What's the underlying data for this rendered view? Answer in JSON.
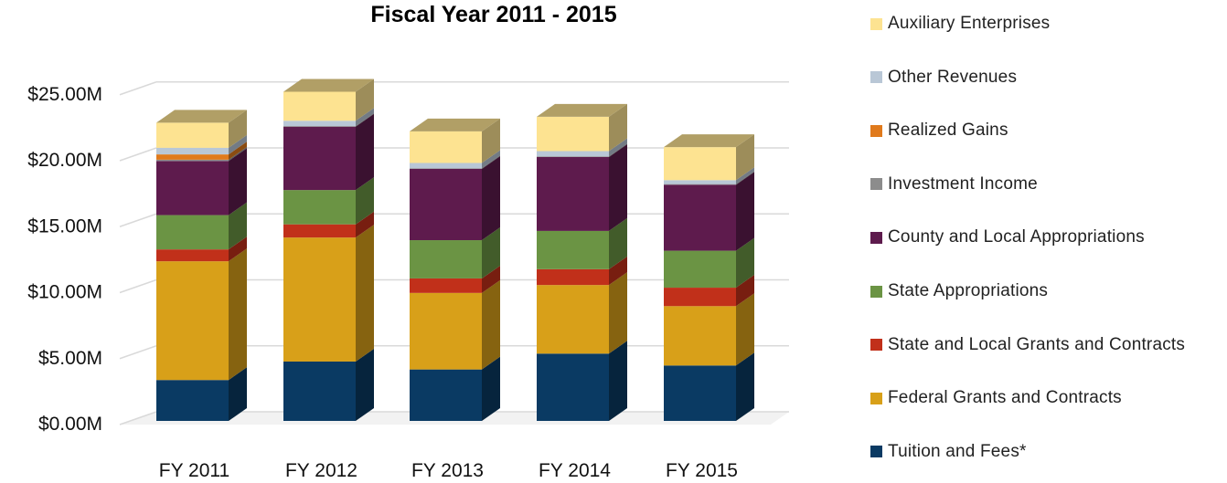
{
  "chart_data": {
    "type": "bar",
    "stacked": true,
    "three_d": true,
    "title": "Fiscal Year 2011 - 2015",
    "xlabel": "",
    "ylabel": "",
    "categories": [
      "FY 2011",
      "FY 2012",
      "FY 2013",
      "FY 2014",
      "FY 2015"
    ],
    "y_ticks": [
      "$0.00M",
      "$5.00M",
      "$10.00M",
      "$15.00M",
      "$20.00M",
      "$25.00M"
    ],
    "y_tick_values": [
      0,
      5,
      10,
      15,
      20,
      25
    ],
    "ylim": [
      0,
      25
    ],
    "grid": true,
    "legend_position": "right",
    "series": [
      {
        "name": "Tuition and Fees*",
        "color": "#0a3a63",
        "values": [
          3.1,
          4.5,
          3.9,
          5.1,
          4.2
        ]
      },
      {
        "name": "Federal Grants and Contracts",
        "color": "#d8a019",
        "values": [
          9.0,
          9.4,
          5.8,
          5.2,
          4.5
        ]
      },
      {
        "name": "State and Local Grants and Contracts",
        "color": "#c1301a",
        "values": [
          0.9,
          1.0,
          1.1,
          1.2,
          1.4
        ]
      },
      {
        "name": "State Appropriations",
        "color": "#6b9444",
        "values": [
          2.6,
          2.6,
          2.9,
          2.9,
          2.8
        ]
      },
      {
        "name": "County and Local Appropriations",
        "color": "#5e1b4d",
        "values": [
          4.1,
          4.8,
          5.4,
          5.6,
          5.0
        ]
      },
      {
        "name": "Investment Income",
        "color": "#8c8c8c",
        "values": [
          0.1,
          0.05,
          0.05,
          0.05,
          0.05
        ]
      },
      {
        "name": "Realized Gains",
        "color": "#e07a1c",
        "values": [
          0.4,
          0.0,
          0.0,
          0.0,
          0.0
        ]
      },
      {
        "name": "Other Revenues",
        "color": "#b9c7d6",
        "values": [
          0.5,
          0.4,
          0.4,
          0.4,
          0.3
        ]
      },
      {
        "name": "Auxiliary Enterprises",
        "color": "#fde391",
        "values": [
          1.9,
          2.2,
          2.4,
          2.6,
          2.5
        ]
      }
    ]
  }
}
